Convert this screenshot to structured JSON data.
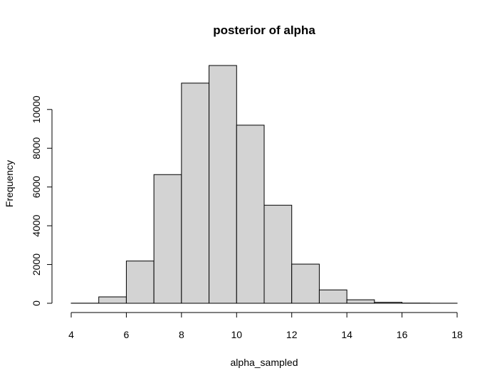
{
  "chart_data": {
    "type": "bar",
    "title": "posterior of alpha",
    "xlabel": "alpha_sampled",
    "ylabel": "Frequency",
    "bin_edges": [
      4,
      5,
      6,
      7,
      8,
      9,
      10,
      11,
      12,
      13,
      14,
      15,
      16,
      17,
      18
    ],
    "values": [
      5,
      330,
      2180,
      6640,
      11360,
      12270,
      9190,
      5060,
      2020,
      690,
      180,
      50,
      10,
      3
    ],
    "xlim": [
      4,
      18
    ],
    "ylim": [
      0,
      12270
    ],
    "x_ticks": [
      "4",
      "6",
      "8",
      "10",
      "12",
      "14",
      "16",
      "18"
    ],
    "y_ticks": [
      "0",
      "2000",
      "4000",
      "6000",
      "8000",
      "10000"
    ],
    "grid": false,
    "bar_color": "#d3d3d3",
    "edge_color": "#000000"
  }
}
